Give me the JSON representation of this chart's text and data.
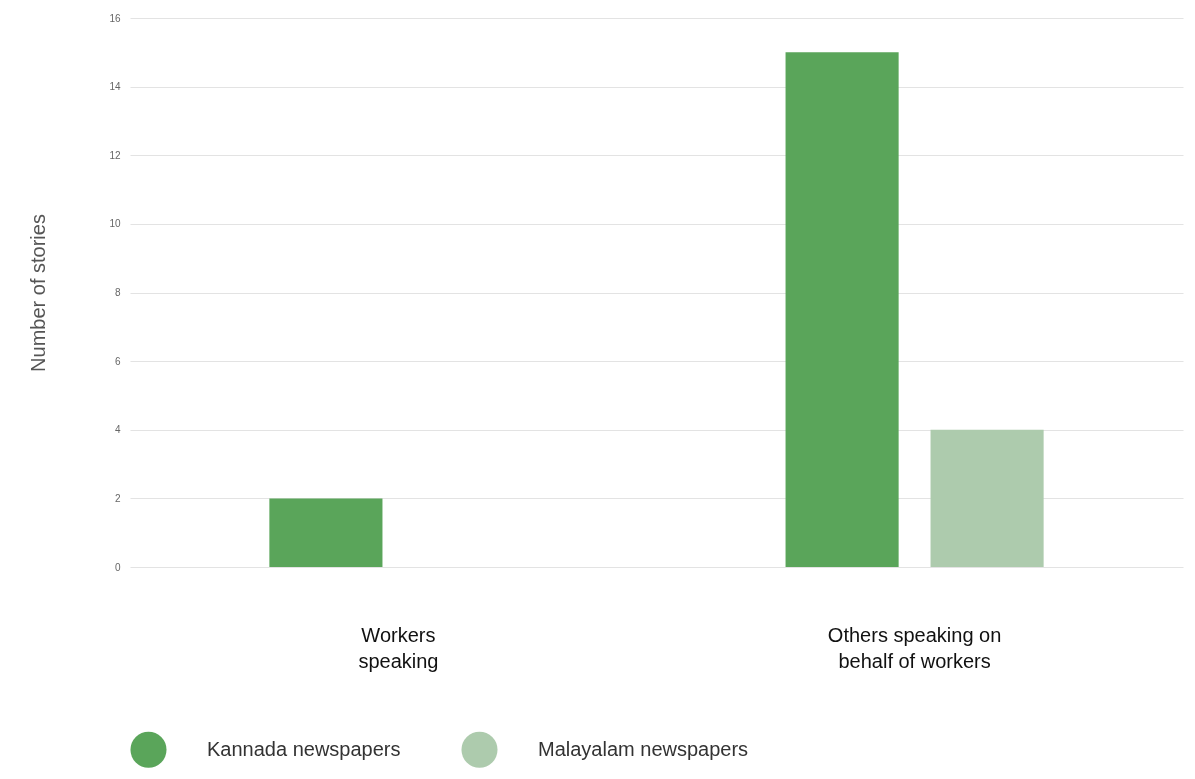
{
  "chart_data": {
    "type": "bar",
    "ylabel": "Number of stories",
    "categories": [
      "Workers speaking",
      "Others speaking on behalf of workers"
    ],
    "series": [
      {
        "name": "Kannada newspapers",
        "color": "#5aa55a",
        "values": [
          2,
          15
        ]
      },
      {
        "name": "Malayalam newspapers",
        "color": "#adcbad",
        "values": [
          0,
          4
        ]
      }
    ],
    "ylim": [
      0,
      16
    ],
    "yticks": [
      0,
      2,
      4,
      6,
      8,
      10,
      12,
      14,
      16
    ],
    "grid": "y",
    "legend": "bottom"
  }
}
